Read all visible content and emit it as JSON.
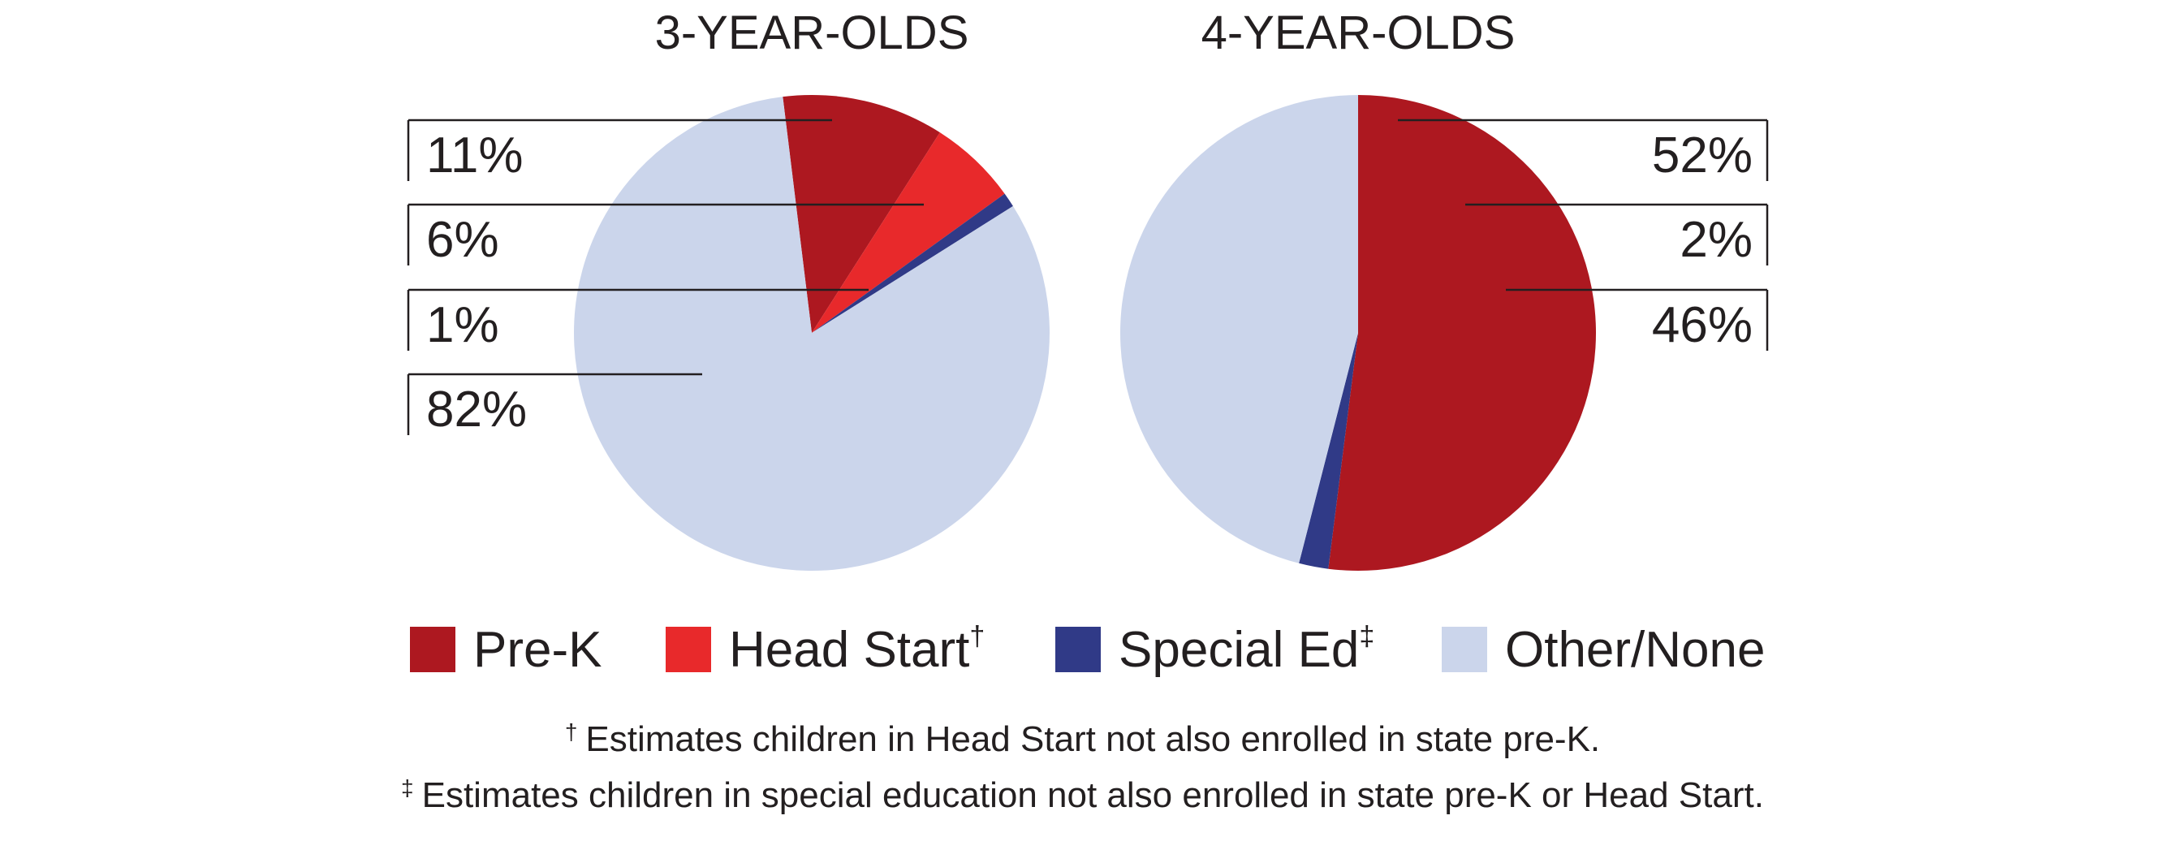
{
  "colors": {
    "pre_k": "#ad1820",
    "head_start": "#e8292b",
    "special_ed": "#303a87",
    "other_none": "#cbd5eb",
    "text": "#231f20"
  },
  "chart_data": [
    {
      "type": "pie",
      "title": "3-YEAR-OLDS",
      "slices": [
        {
          "name": "Pre-K",
          "value": 11,
          "label": "11%"
        },
        {
          "name": "Head Start",
          "value": 6,
          "label": "6%"
        },
        {
          "name": "Special Ed",
          "value": 1,
          "label": "1%"
        },
        {
          "name": "Other/None",
          "value": 82,
          "label": "82%"
        }
      ],
      "label_side": "left"
    },
    {
      "type": "pie",
      "title": "4-YEAR-OLDS",
      "slices": [
        {
          "name": "Pre-K",
          "value": 52,
          "label": "52%"
        },
        {
          "name": "Special Ed",
          "value": 2,
          "label": "2%"
        },
        {
          "name": "Other/None",
          "value": 46,
          "label": "46%"
        }
      ],
      "label_side": "right"
    }
  ],
  "legend": [
    {
      "key": "pre_k",
      "label": "Pre-K",
      "mark": ""
    },
    {
      "key": "head_start",
      "label": "Head Start",
      "mark": "†"
    },
    {
      "key": "special_ed",
      "label": "Special Ed",
      "mark": "‡"
    },
    {
      "key": "other_none",
      "label": "Other/None",
      "mark": ""
    }
  ],
  "footnotes": [
    {
      "mark": "†",
      "text": "Estimates children in Head Start not also enrolled in state pre-K."
    },
    {
      "mark": "‡",
      "text": "Estimates children in special education not also enrolled in state pre-K or Head Start."
    }
  ]
}
